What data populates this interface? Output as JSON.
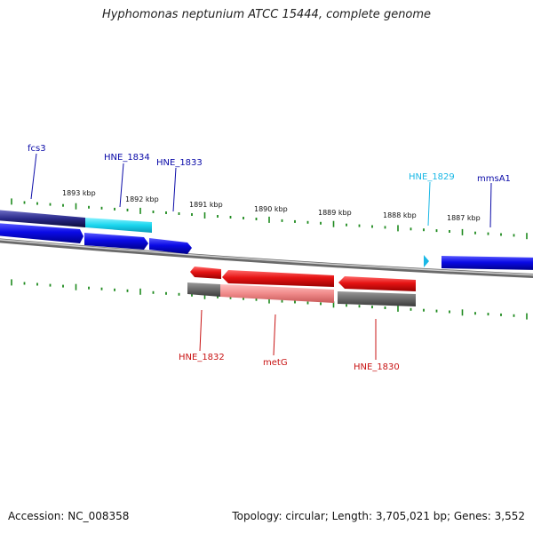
{
  "title": "Hyphomonas neptunium ATCC 15444, complete genome",
  "accession": "Accession: NC_008358",
  "summary": "Topology: circular; Length: 3,705,021 bp; Genes: 3,552",
  "colors": {
    "background": "#ffffff",
    "backbone": "#8a8a8a",
    "tick": "#1e8a1e",
    "forward_gene": "#0a0ae6",
    "forward_label": "#0a0aa8",
    "forward_hit": "#1ad6ef",
    "reverse_gene": "#e61414",
    "reverse_label": "#c81414",
    "reverse_hit_gray": "#6a6a6a",
    "reverse_hit_pink": "#f08a8a"
  },
  "ticks": {
    "labels": [
      "1893 kbp",
      "1892 kbp",
      "1891 kbp",
      "1890 kbp",
      "1889 kbp",
      "1888 kbp",
      "1887 kbp"
    ]
  },
  "genes": {
    "forward": [
      {
        "name": "fcs3",
        "color": "#0a0aa8"
      },
      {
        "name": "HNE_1834",
        "color": "#0a0aa8"
      },
      {
        "name": "HNE_1833",
        "color": "#0a0aa8"
      },
      {
        "name": "HNE_1829",
        "color": "#1ab8e6"
      },
      {
        "name": "mmsA1",
        "color": "#0a0aa8"
      }
    ],
    "reverse": [
      {
        "name": "HNE_1832",
        "color": "#c81414"
      },
      {
        "name": "metG",
        "color": "#c81414"
      },
      {
        "name": "HNE_1830",
        "color": "#c81414"
      }
    ]
  }
}
